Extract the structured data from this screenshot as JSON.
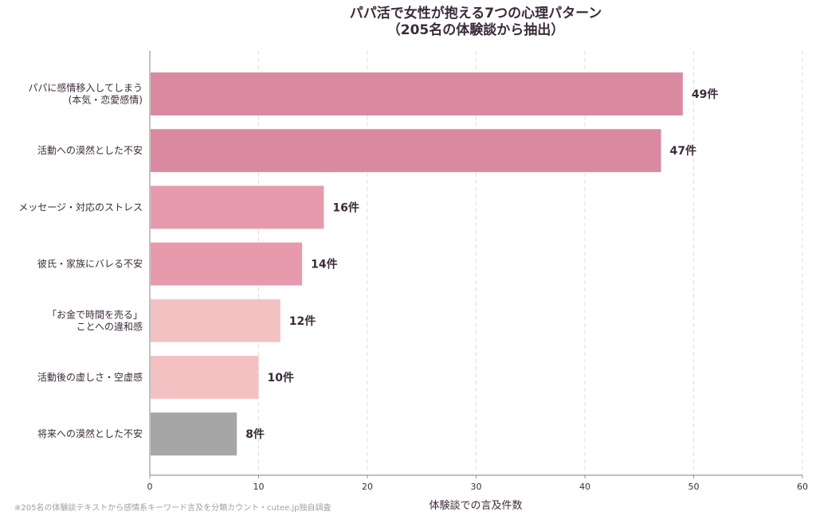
{
  "chart_data": {
    "type": "bar",
    "orientation": "horizontal",
    "title": [
      "パパ活で女性が抱える7つの心理パターン",
      "（205名の体験談から抽出）"
    ],
    "xlabel": "体験談での言及件数",
    "ylabel": "",
    "xlim": [
      0,
      60
    ],
    "xticks": [
      0,
      10,
      20,
      30,
      40,
      50,
      60
    ],
    "grid": "vertical-dashed",
    "categories": [
      [
        "パパに感情移入してしまう",
        "(本気・恋愛感情)"
      ],
      [
        "活動への漠然とした不安"
      ],
      [
        "メッセージ・対応のストレス"
      ],
      [
        "彼氏・家族にバレる不安"
      ],
      [
        "「お金で時間を売る」",
        "ことへの違和感"
      ],
      [
        "活動後の虚しさ・空虚感"
      ],
      [
        "将来への漠然とした不安"
      ]
    ],
    "values": [
      49,
      47,
      16,
      14,
      12,
      10,
      8
    ],
    "value_labels": [
      "49件",
      "47件",
      "16件",
      "14件",
      "12件",
      "10件",
      "8件"
    ],
    "colors": [
      "#d98aa1",
      "#d98aa1",
      "#e89aad",
      "#e89aad",
      "#f4c1c3",
      "#f4c1c3",
      "#a6a6a6"
    ],
    "footnote": "※205名の体験談テキストから感情系キーワード言及を分類カウント・cutee.jp独自調査"
  }
}
